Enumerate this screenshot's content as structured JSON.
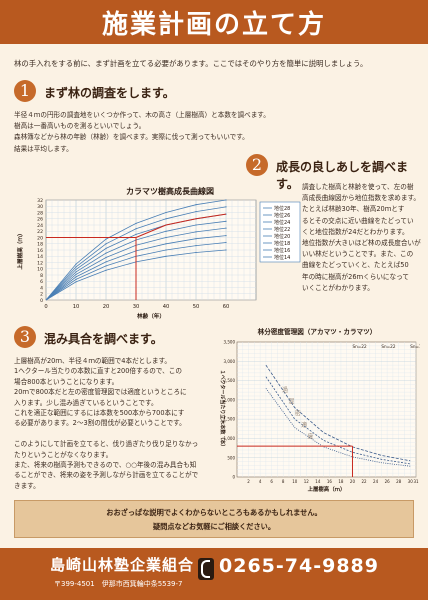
{
  "header": {
    "title": "施業計画の立て方"
  },
  "intro": "林の手入れをする前に、まず計画を立てる必要があります。ここではそのやり方を簡単に説明しましょう。",
  "section1": {
    "number": "1",
    "title": "まず林の調査をします。",
    "lines": [
      "半径４ｍの円形の調査地をいくつか作って、木の高さ（上層樹高）と本数を調べます。",
      "樹高は一番高いものを測るといいでしょう。",
      "森林簿などから林の年齢（林齢）を調べます。実際に伐って測ってもいいです。",
      "結果は平均します。"
    ]
  },
  "section2": {
    "number": "2",
    "title": "成長の良しあしを調べます。",
    "lines": [
      "調査した樹高と林齢を使って、左の樹",
      "高成長曲線図から地位指数を求めます。",
      "たとえば林齢30年、樹高20ｍとす",
      "るとその交点に近い曲線をたどってい",
      "くと地位指数が24だとわかります。",
      "地位指数が大きいほど林の成長度合いが",
      "いい林だということです。また、この",
      "曲線をたどっていくと、たとえば50",
      "年の時に樹高が26ｍくらいになって",
      "いくことがわかります。"
    ]
  },
  "section3": {
    "number": "3",
    "title": "混み具合を調べます。",
    "lines": [
      "上層樹高が20ｍ、半径４ｍの範囲で4本だとします。",
      "1ヘクタール当たりの本数に直すと200倍するので、この",
      "場合800本ということになります。",
      "20ｍで800本だと左の密度管理図では適度というところに",
      "入ります。少し混み過ぎているということです。",
      "これを適正な範囲にするには本数を500本から700本にす",
      "る必要があります。2～3割の間伐が必要ということです。",
      "",
      "このようにして計画を立てると、伐り過ぎたり伐り足りなかっ",
      "たりということがなくなります。",
      "また、将来の樹高予測もできるので、○○年後の混み具合も知",
      "ることができ、将来の姿を予測しながら計画を立てることがで",
      "きます。"
    ]
  },
  "notice": {
    "line1": "おおざっぱな説明でよくわからないところもあるかもしれません。",
    "line2": "疑問点などお気軽にご相談ください。"
  },
  "footer": {
    "org": "島崎山林塾企業組合",
    "address": "〒399-4501　伊那市西箕輪中条5539-7",
    "phone": "0265-74-9889"
  },
  "chart_data": [
    {
      "type": "line",
      "title": "カラマツ樹高成長曲線図",
      "xlabel": "林齢（年）",
      "ylabel": "上層樹高（ｍ）",
      "xlim": [
        0,
        70
      ],
      "ylim": [
        0,
        32
      ],
      "xticks": [
        0,
        10,
        20,
        30,
        40,
        50,
        60
      ],
      "yticks": [
        0,
        2,
        4,
        6,
        8,
        10,
        12,
        14,
        16,
        18,
        20,
        22,
        24,
        26,
        28,
        30,
        32
      ],
      "legend": "right",
      "series": [
        {
          "name": "地位28",
          "x": [
            10,
            20,
            30,
            40,
            50,
            60
          ],
          "y": [
            11.5,
            19.5,
            24.5,
            28,
            30.5,
            32
          ]
        },
        {
          "name": "地位26",
          "x": [
            10,
            20,
            30,
            40,
            50,
            60
          ],
          "y": [
            10.6,
            18,
            22.8,
            26,
            28.3,
            29.8
          ]
        },
        {
          "name": "地位24",
          "x": [
            10,
            20,
            30,
            40,
            50,
            60
          ],
          "y": [
            9.8,
            16.5,
            21,
            24,
            26,
            27.5
          ]
        },
        {
          "name": "地位22",
          "x": [
            10,
            20,
            30,
            40,
            50,
            60
          ],
          "y": [
            9,
            15,
            19.2,
            22,
            24,
            25.2
          ]
        },
        {
          "name": "地位20",
          "x": [
            10,
            20,
            30,
            40,
            50,
            60
          ],
          "y": [
            8.2,
            13.6,
            17.5,
            20,
            21.8,
            23
          ]
        },
        {
          "name": "地位18",
          "x": [
            10,
            20,
            30,
            40,
            50,
            60
          ],
          "y": [
            7.4,
            12.2,
            15.7,
            18,
            19.6,
            20.6
          ]
        },
        {
          "name": "地位16",
          "x": [
            10,
            20,
            30,
            40,
            50,
            60
          ],
          "y": [
            6.6,
            10.9,
            14,
            16,
            17.4,
            18.4
          ]
        },
        {
          "name": "地位14",
          "x": [
            10,
            20,
            30,
            40,
            50,
            60
          ],
          "y": [
            5.8,
            9.5,
            12.2,
            14,
            15.2,
            16
          ]
        }
      ],
      "guides": {
        "x": 30,
        "y": 20
      }
    },
    {
      "type": "line",
      "title": "林分密度管理図（アカマツ・カラマツ）",
      "xlabel": "上層樹高（ｍ）",
      "ylabel": "１ヘクタール当たり立木本数（本）",
      "xlim": [
        0,
        31
      ],
      "ylim": [
        0,
        3500
      ],
      "xticks": [
        2,
        4,
        6,
        8,
        10,
        12,
        14,
        16,
        18,
        20,
        22,
        24,
        26,
        28,
        30,
        31
      ],
      "yticks": [
        0,
        500,
        1000,
        1500,
        2000,
        2500,
        3000,
        3500
      ],
      "series": [
        {
          "name": "Sn=22",
          "x": [
            5,
            10,
            15,
            20,
            25,
            30
          ],
          "y": [
            2900,
            1800,
            1150,
            780,
            560,
            420
          ]
        },
        {
          "name": "Sn=22",
          "x": [
            5,
            10,
            15,
            20,
            25,
            30
          ],
          "y": [
            2600,
            1500,
            950,
            640,
            460,
            340
          ]
        },
        {
          "name": "Sn=17",
          "x": [
            5,
            10,
            15,
            20,
            25,
            30
          ],
          "y": [
            2300,
            1280,
            780,
            520,
            370,
            280
          ]
        }
      ],
      "zone_labels": [
        "過",
        "混",
        "密",
        "適",
        "度"
      ],
      "guides": {
        "x": 20,
        "y": 800
      }
    }
  ]
}
